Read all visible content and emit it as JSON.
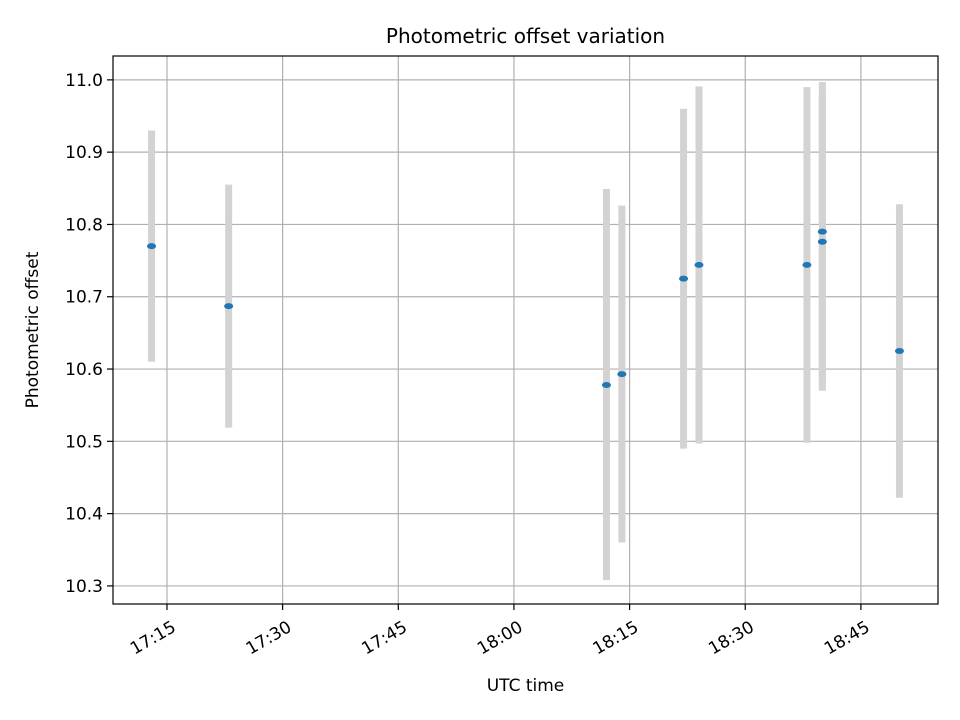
{
  "chart_data": {
    "type": "scatter",
    "title": "Photometric offset variation",
    "xlabel": "UTC time",
    "ylabel": "Photometric offset",
    "grid": true,
    "xlim": [
      "17:08",
      "18:55"
    ],
    "ylim": [
      10.275,
      11.033
    ],
    "x_ticks": [
      "17:15",
      "17:30",
      "17:45",
      "18:00",
      "18:15",
      "18:30",
      "18:45"
    ],
    "y_ticks": [
      10.3,
      10.4,
      10.5,
      10.6,
      10.7,
      10.8,
      10.9,
      11.0
    ],
    "y_tick_labels": [
      "10.3",
      "10.4",
      "10.5",
      "10.6",
      "10.7",
      "10.8",
      "10.9",
      "11.0"
    ],
    "errorbar_color": "#d3d3d3",
    "marker_color": "#1f77b4",
    "points": [
      {
        "x": "17:13",
        "y": 10.77,
        "ylow": 10.61,
        "yhigh": 10.93
      },
      {
        "x": "17:23",
        "y": 10.687,
        "ylow": 10.519,
        "yhigh": 10.855
      },
      {
        "x": "18:12",
        "y": 10.578,
        "ylow": 10.308,
        "yhigh": 10.849
      },
      {
        "x": "18:14",
        "y": 10.593,
        "ylow": 10.36,
        "yhigh": 10.826
      },
      {
        "x": "18:22",
        "y": 10.725,
        "ylow": 10.49,
        "yhigh": 10.96
      },
      {
        "x": "18:24",
        "y": 10.744,
        "ylow": 10.497,
        "yhigh": 10.991
      },
      {
        "x": "18:38",
        "y": 10.744,
        "ylow": 10.498,
        "yhigh": 10.99
      },
      {
        "x": "18:40",
        "y": 10.79,
        "ylow": 10.582,
        "yhigh": 10.997
      },
      {
        "x": "18:40",
        "y": 10.776,
        "ylow": 10.57,
        "yhigh": 10.981
      },
      {
        "x": "18:50",
        "y": 10.625,
        "ylow": 10.422,
        "yhigh": 10.828
      }
    ]
  }
}
